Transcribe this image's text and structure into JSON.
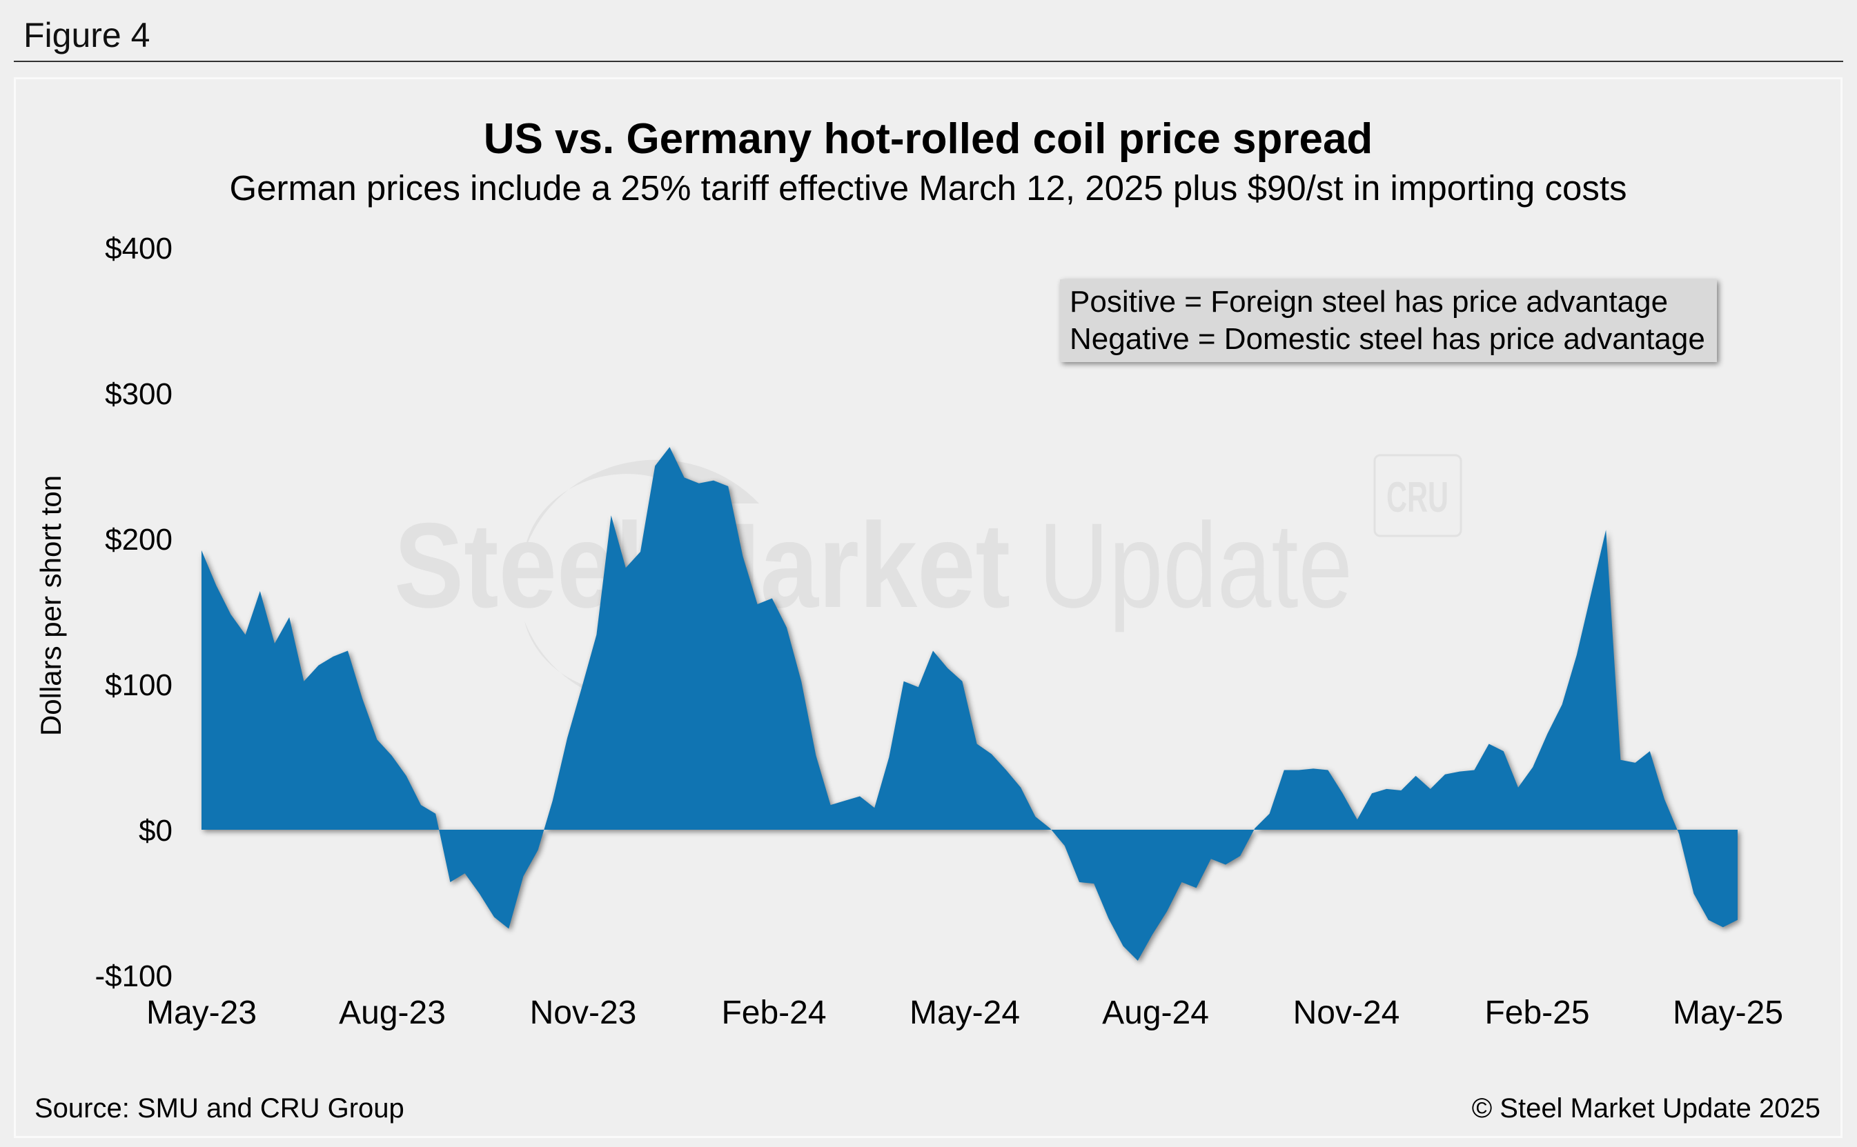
{
  "figure_label": "Figure 4",
  "source": "Source: SMU and CRU Group",
  "copyright": "© Steel Market Update 2025",
  "watermark": {
    "brand": "Steel Market Update",
    "brand_bold": "Steel Market",
    "brand_light": "Update",
    "logo": "CRU"
  },
  "colors": {
    "area": "#1074b2",
    "background": "#efefef"
  },
  "chart_data": {
    "type": "area",
    "title": "US vs. Germany hot-rolled coil price spread",
    "subtitle": "German prices include a 25% tariff effective March 12, 2025 plus $90/st in importing costs",
    "ylabel": "Dollars per short ton",
    "xlabel": "",
    "ylim": [
      -100,
      400
    ],
    "yticks": [
      400,
      300,
      200,
      100,
      0,
      -100
    ],
    "ytick_labels": [
      "$400",
      "$300",
      "$200",
      "$100",
      "$0",
      "-$100"
    ],
    "xtick_labels": [
      "May-23",
      "Aug-23",
      "Nov-23",
      "Feb-24",
      "May-24",
      "Aug-24",
      "Nov-24",
      "Feb-25",
      "May-25"
    ],
    "x_frequency": "weekly",
    "grid": false,
    "legend": {
      "placement": "top-right",
      "lines": [
        "Positive = Foreign steel has price advantage",
        "Negative = Domestic steel has price advantage"
      ]
    },
    "values": [
      192,
      168,
      148,
      134,
      164,
      128,
      146,
      102,
      113,
      119,
      123,
      90,
      62,
      51,
      37,
      17,
      11,
      -36,
      -30,
      -44,
      -60,
      -68,
      -32,
      -14,
      20,
      63,
      98,
      134,
      216,
      180,
      191,
      250,
      263,
      242,
      238,
      240,
      236,
      188,
      155,
      159,
      139,
      102,
      51,
      17,
      20,
      23,
      15,
      50,
      102,
      98,
      123,
      111,
      102,
      59,
      52,
      41,
      29,
      9,
      1,
      -11,
      -36,
      -37,
      -61,
      -80,
      -90,
      -72,
      -56,
      -36,
      -40,
      -20,
      -24,
      -18,
      1,
      11,
      41,
      41,
      42,
      41,
      25,
      7,
      25,
      28,
      27,
      37,
      28,
      38,
      40,
      41,
      59,
      54,
      29,
      43,
      66,
      86,
      120,
      163,
      206,
      48,
      46,
      54,
      21,
      -3,
      -44,
      -62,
      -67,
      -62
    ]
  }
}
